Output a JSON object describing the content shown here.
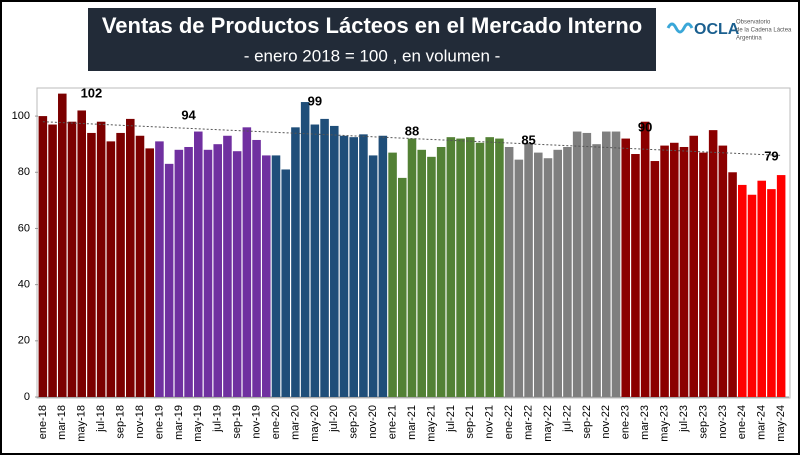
{
  "chart_data": {
    "type": "bar",
    "title": "Ventas de Productos Lácteos en el Mercado Interno",
    "subtitle": "- enero 2018 = 100 , en volumen -",
    "logo": {
      "name": "OCLA",
      "lines": [
        "Observatorio",
        "de la Cadena Láctea",
        "Argentina"
      ]
    },
    "categories": [
      "ene-18",
      null,
      "mar-18",
      null,
      "may-18",
      null,
      "jul-18",
      null,
      "sep-18",
      null,
      "nov-18",
      null,
      "ene-19",
      null,
      "mar-19",
      null,
      "may-19",
      null,
      "jul-19",
      null,
      "sep-19",
      null,
      "nov-19",
      null,
      "ene-20",
      null,
      "mar-20",
      null,
      "may-20",
      null,
      "jul-20",
      null,
      "sep-20",
      null,
      "nov-20",
      null,
      "ene-21",
      null,
      "mar-21",
      null,
      "may-21",
      null,
      "jul-21",
      null,
      "sep-21",
      null,
      "nov-21",
      null,
      "ene-22",
      null,
      "mar-22",
      null,
      "may-22",
      null,
      "jul-22",
      null,
      "sep-22",
      null,
      "nov-22",
      null,
      "ene-23",
      null,
      "mar-23",
      null,
      "may-23",
      null,
      "jul-23",
      null,
      "sep-23",
      null,
      "nov-23",
      null,
      "ene-24",
      null,
      "mar-24",
      null,
      "may-24"
    ],
    "values": [
      100,
      97,
      108,
      98,
      102,
      94,
      98,
      91,
      94,
      99,
      93,
      88.5,
      91,
      83,
      88,
      89,
      94.5,
      88,
      90,
      93,
      87.5,
      96,
      91.5,
      86,
      86,
      81,
      96,
      105,
      97,
      99,
      96.5,
      93,
      92.5,
      93.5,
      86,
      93,
      87,
      78,
      92,
      88,
      85.5,
      89,
      92.5,
      92,
      92.5,
      90.5,
      92.5,
      92,
      89,
      84.5,
      90.5,
      87,
      85,
      88,
      89,
      94.5,
      94,
      90,
      94.5,
      94.5,
      92,
      86.5,
      98,
      84,
      89.5,
      90.5,
      89,
      93,
      87,
      95,
      89.5,
      80,
      75.5,
      72,
      77,
      74,
      79
    ],
    "year_colors": [
      "#7b0000",
      "#7030a0",
      "#1f4e79",
      "#538135",
      "#7f7f7f",
      "#8b0000",
      "#ff0000"
    ],
    "annotations": [
      "102",
      "94",
      "99",
      "88",
      "85",
      "90",
      "79"
    ],
    "trendline": [
      98,
      86
    ],
    "ylim": [
      0,
      110
    ],
    "yticks": [
      0,
      20,
      40,
      60,
      80,
      100
    ],
    "grid": false
  }
}
